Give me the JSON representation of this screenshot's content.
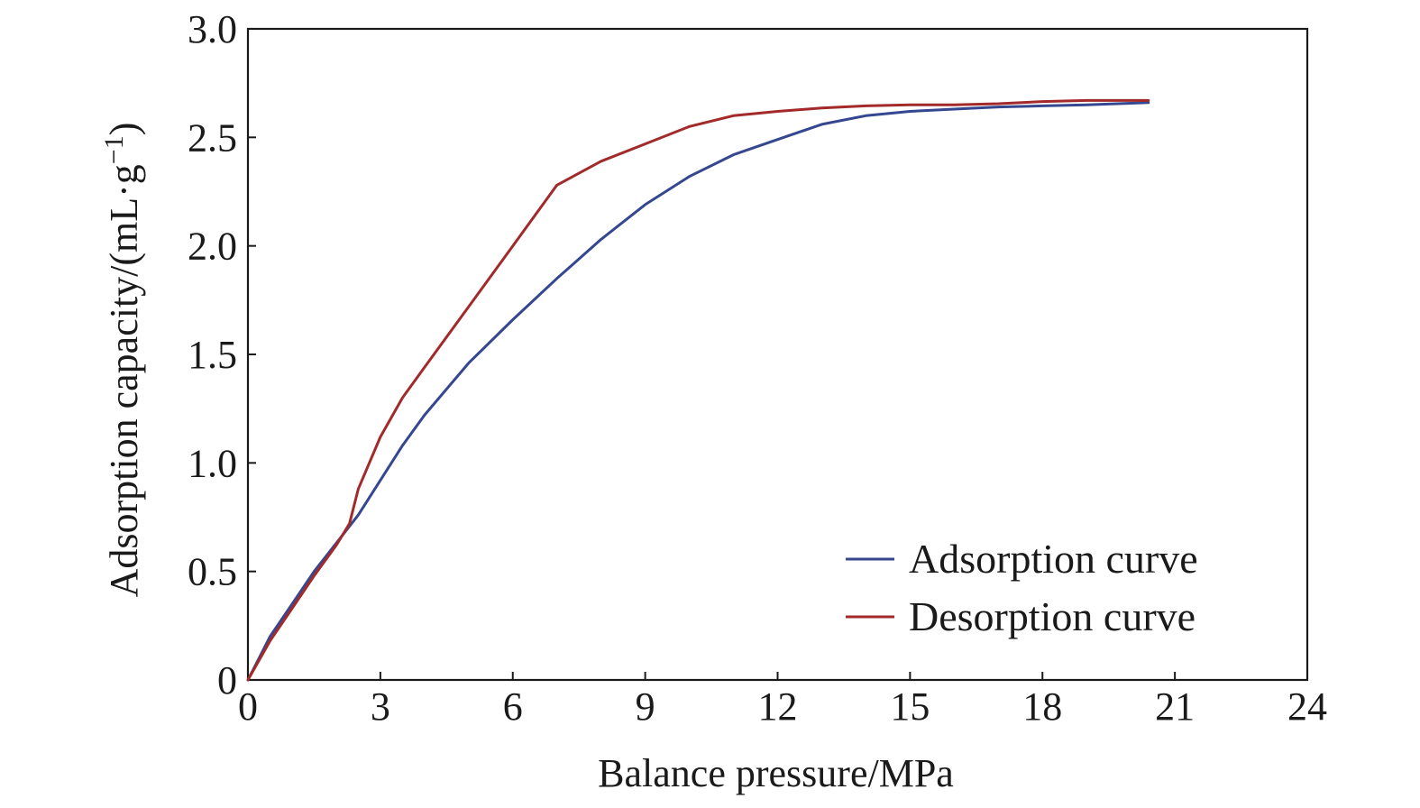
{
  "chart_data": {
    "type": "line",
    "title": "",
    "xlabel": "Balance pressure/MPa",
    "ylabel": "Adsorption capacity/(mL·g",
    "ylabel_sup": "−1",
    "ylabel_close": ")",
    "xlim": [
      0,
      24
    ],
    "ylim": [
      0,
      3.0
    ],
    "x_ticks": [
      0,
      3,
      6,
      9,
      12,
      15,
      18,
      21,
      24
    ],
    "x_tick_labels": [
      "0",
      "3",
      "6",
      "9",
      "12",
      "15",
      "18",
      "21",
      "24"
    ],
    "y_ticks": [
      0,
      0.5,
      1.0,
      1.5,
      2.0,
      2.5,
      3.0
    ],
    "y_tick_labels": [
      "0",
      "0.5",
      "1.0",
      "1.5",
      "2.0",
      "2.5",
      "3.0"
    ],
    "grid": false,
    "legend_position": "bottom-right",
    "series": [
      {
        "name": "Adsorption curve",
        "color": "#34478f",
        "points": [
          [
            0,
            0
          ],
          [
            0.5,
            0.2
          ],
          [
            1.0,
            0.35
          ],
          [
            1.5,
            0.5
          ],
          [
            2.0,
            0.63
          ],
          [
            2.5,
            0.76
          ],
          [
            3.0,
            0.92
          ],
          [
            3.5,
            1.08
          ],
          [
            4.0,
            1.22
          ],
          [
            5.0,
            1.46
          ],
          [
            6.0,
            1.66
          ],
          [
            7.0,
            1.85
          ],
          [
            8.0,
            2.03
          ],
          [
            9.0,
            2.19
          ],
          [
            10.0,
            2.32
          ],
          [
            11.0,
            2.42
          ],
          [
            12.0,
            2.49
          ],
          [
            13.0,
            2.56
          ],
          [
            14.0,
            2.6
          ],
          [
            15.0,
            2.62
          ],
          [
            16.0,
            2.63
          ],
          [
            17.0,
            2.64
          ],
          [
            18.0,
            2.645
          ],
          [
            19.0,
            2.65
          ],
          [
            20.4,
            2.66
          ]
        ]
      },
      {
        "name": "Desorption curve",
        "color": "#a32a2a",
        "points": [
          [
            0,
            0
          ],
          [
            0.5,
            0.18
          ],
          [
            1.0,
            0.33
          ],
          [
            1.5,
            0.48
          ],
          [
            2.0,
            0.62
          ],
          [
            2.3,
            0.72
          ],
          [
            2.5,
            0.88
          ],
          [
            3.0,
            1.12
          ],
          [
            3.5,
            1.3
          ],
          [
            4.0,
            1.44
          ],
          [
            5.0,
            1.72
          ],
          [
            6.0,
            2.0
          ],
          [
            7.0,
            2.28
          ],
          [
            8.0,
            2.39
          ],
          [
            9.0,
            2.47
          ],
          [
            10.0,
            2.55
          ],
          [
            11.0,
            2.6
          ],
          [
            12.0,
            2.62
          ],
          [
            13.0,
            2.635
          ],
          [
            14.0,
            2.645
          ],
          [
            15.0,
            2.65
          ],
          [
            16.0,
            2.65
          ],
          [
            17.0,
            2.655
          ],
          [
            18.0,
            2.665
          ],
          [
            19.0,
            2.67
          ],
          [
            20.4,
            2.67
          ]
        ]
      }
    ]
  }
}
